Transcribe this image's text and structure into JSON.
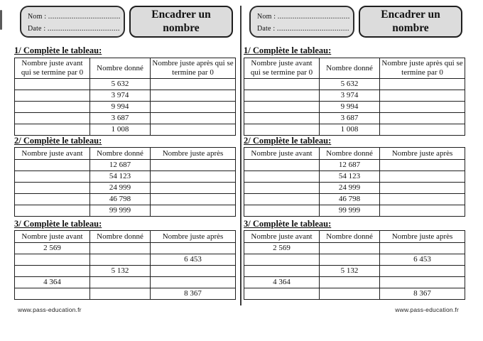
{
  "colors": {
    "box_fill": "#e0e0e0",
    "title_box_fill": "#dcdcdc",
    "line_color": "#1e1e1e"
  },
  "sheet": {
    "name_label": "Nom :",
    "name_dots": "..................................",
    "date_label": "Date :",
    "date_dots": "..................................",
    "title": "Encadrer un nombre",
    "footer_url": "www.pass-education.fr",
    "sections": [
      {
        "heading": "1/ Complète le tableau:",
        "columns": [
          "Nombre juste avant qui se termine par 0",
          "Nombre donné",
          "Nombre juste après qui se termine par 0"
        ],
        "rows": [
          [
            "",
            "5 632",
            ""
          ],
          [
            "",
            "3 974",
            ""
          ],
          [
            "",
            "9 994",
            ""
          ],
          [
            "",
            "3 687",
            ""
          ],
          [
            "",
            "1 008",
            ""
          ]
        ]
      },
      {
        "heading": "2/ Complète le tableau:",
        "columns": [
          "Nombre juste avant",
          "Nombre donné",
          "Nombre juste après"
        ],
        "rows": [
          [
            "",
            "12 687",
            ""
          ],
          [
            "",
            "54 123",
            ""
          ],
          [
            "",
            "24 999",
            ""
          ],
          [
            "",
            "46 798",
            ""
          ],
          [
            "",
            "99 999",
            ""
          ]
        ]
      },
      {
        "heading": "3/ Complète le tableau:",
        "columns": [
          "Nombre juste avant",
          "Nombre donné",
          "Nombre juste après"
        ],
        "rows": [
          [
            "2 569",
            "",
            ""
          ],
          [
            "",
            "",
            "6 453"
          ],
          [
            "",
            "5 132",
            ""
          ],
          [
            "4 364",
            "",
            ""
          ],
          [
            "",
            "",
            "8 367"
          ]
        ]
      }
    ]
  }
}
